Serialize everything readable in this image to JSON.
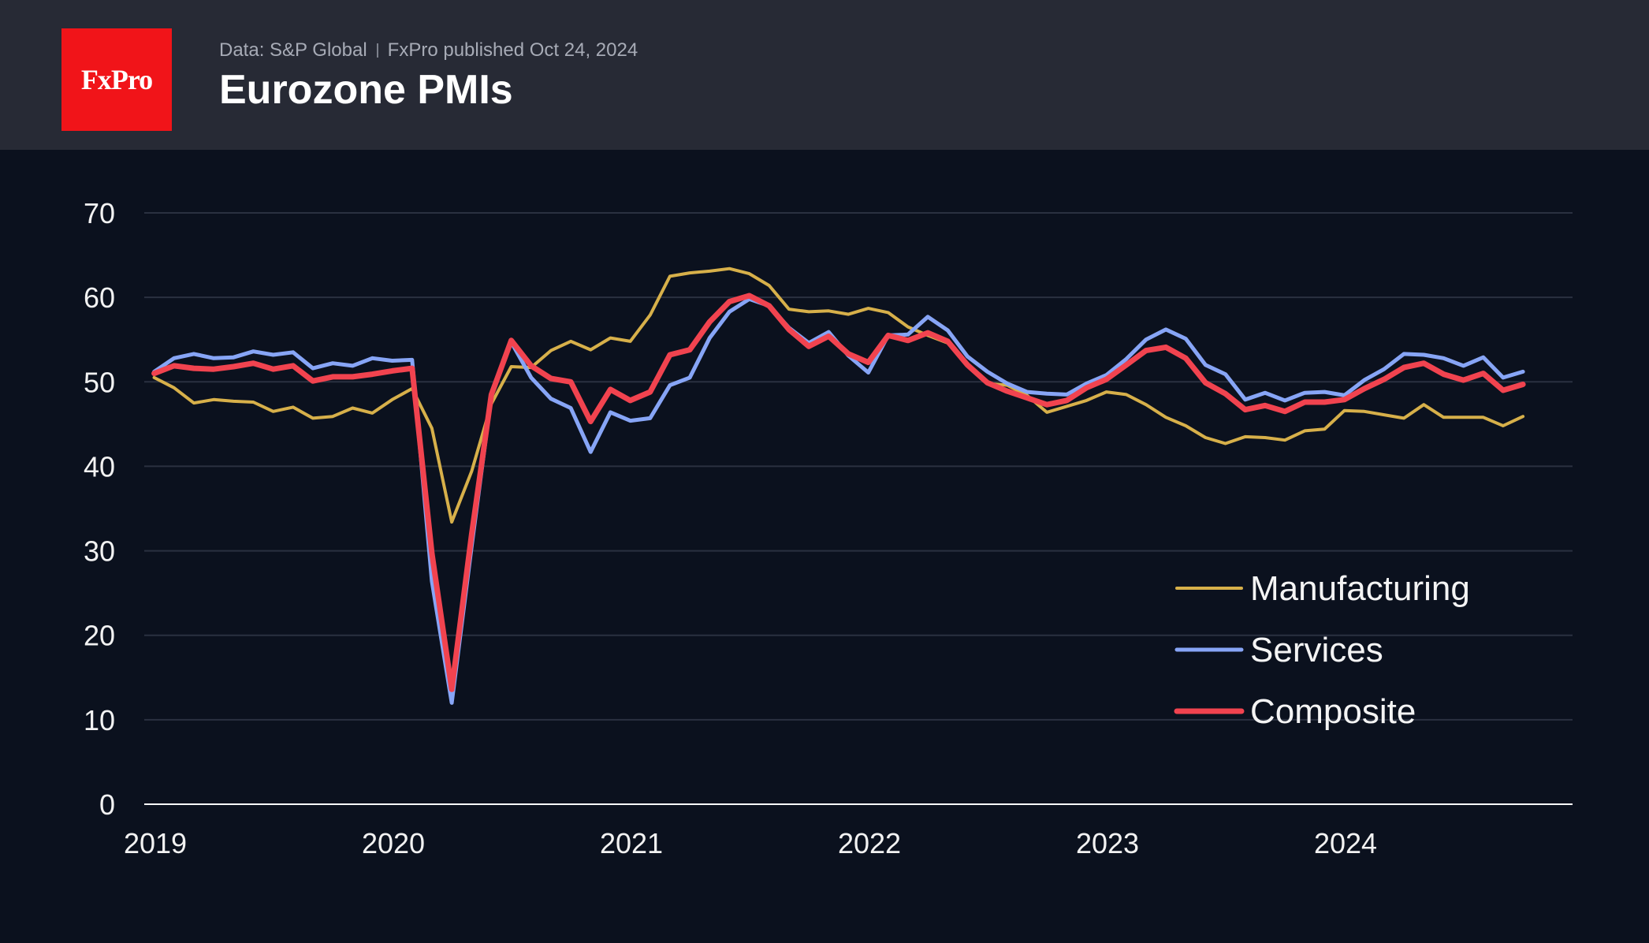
{
  "header": {
    "logo_text": "FxPro",
    "source": "Data: S&P Global",
    "published": "FxPro published Oct 24, 2024",
    "title": "Eurozone PMIs"
  },
  "colors": {
    "background": "#0b111e",
    "header": "#272a35",
    "logo": "#f11419",
    "grid": "#2a3140",
    "axis": "#ffffff"
  },
  "chart_data": {
    "type": "line",
    "x_start": "2019-01",
    "x_frequency": "monthly",
    "x_tick_labels": [
      "2019",
      "2020",
      "2021",
      "2022",
      "2023",
      "2024"
    ],
    "y_tick_labels": [
      "0",
      "10",
      "20",
      "30",
      "40",
      "50",
      "60",
      "70"
    ],
    "ylim": [
      0,
      70
    ],
    "grid": true,
    "legend_position": "bottom-right",
    "series": [
      {
        "name": "Manufacturing",
        "color": "#d7b04a",
        "values": [
          50.5,
          49.3,
          47.5,
          47.9,
          47.7,
          47.6,
          46.5,
          47.0,
          45.7,
          45.9,
          46.9,
          46.3,
          47.9,
          49.2,
          44.5,
          33.4,
          39.4,
          47.4,
          51.8,
          51.7,
          53.7,
          54.8,
          53.8,
          55.2,
          54.8,
          57.9,
          62.5,
          62.9,
          63.1,
          63.4,
          62.8,
          61.4,
          58.6,
          58.3,
          58.4,
          58.0,
          58.7,
          58.2,
          56.5,
          55.5,
          54.6,
          52.1,
          49.8,
          49.6,
          48.4,
          46.4,
          47.1,
          47.8,
          48.8,
          48.5,
          47.3,
          45.8,
          44.8,
          43.4,
          42.7,
          43.5,
          43.4,
          43.1,
          44.2,
          44.4,
          46.6,
          46.5,
          46.1,
          45.7,
          47.3,
          45.8,
          45.8,
          45.8,
          44.8,
          45.9
        ]
      },
      {
        "name": "Services",
        "color": "#87a5f6",
        "values": [
          51.2,
          52.8,
          53.3,
          52.8,
          52.9,
          53.6,
          53.2,
          53.5,
          51.6,
          52.2,
          51.9,
          52.8,
          52.5,
          52.6,
          26.4,
          12.0,
          30.5,
          48.3,
          54.7,
          50.5,
          48.0,
          46.9,
          41.7,
          46.4,
          45.4,
          45.7,
          49.6,
          50.5,
          55.2,
          58.3,
          59.8,
          59.0,
          56.4,
          54.6,
          55.9,
          53.1,
          51.1,
          55.5,
          55.6,
          57.7,
          56.1,
          53.0,
          51.2,
          49.8,
          48.8,
          48.6,
          48.5,
          49.8,
          50.8,
          52.7,
          55.0,
          56.2,
          55.1,
          52.0,
          50.9,
          47.9,
          48.7,
          47.8,
          48.7,
          48.8,
          48.4,
          50.2,
          51.5,
          53.3,
          53.2,
          52.8,
          51.9,
          52.9,
          50.5,
          51.2
        ]
      },
      {
        "name": "Composite",
        "color": "#f1434f",
        "values": [
          51.0,
          51.9,
          51.6,
          51.5,
          51.8,
          52.2,
          51.5,
          51.9,
          50.1,
          50.6,
          50.6,
          50.9,
          51.3,
          51.6,
          29.7,
          13.6,
          31.9,
          48.5,
          54.9,
          51.9,
          50.4,
          50.0,
          45.3,
          49.1,
          47.8,
          48.8,
          53.2,
          53.8,
          57.1,
          59.5,
          60.2,
          59.0,
          56.2,
          54.2,
          55.4,
          53.3,
          52.3,
          55.5,
          54.9,
          55.8,
          54.8,
          52.0,
          49.9,
          48.9,
          48.1,
          47.3,
          47.8,
          49.3,
          50.3,
          52.0,
          53.7,
          54.1,
          52.8,
          49.9,
          48.6,
          46.7,
          47.2,
          46.5,
          47.6,
          47.6,
          47.9,
          49.2,
          50.3,
          51.7,
          52.2,
          50.9,
          50.2,
          51.0,
          49.0,
          49.7
        ]
      }
    ]
  }
}
